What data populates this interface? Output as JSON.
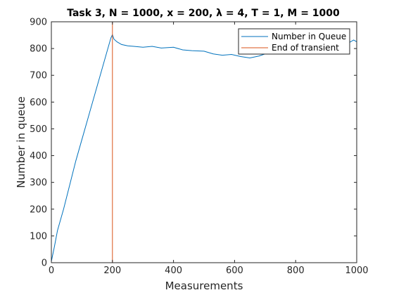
{
  "chart_data": {
    "type": "line",
    "title": "Task 3, N = 1000, x = 200, λ = 4, T = 1, M = 1000",
    "xlabel": "Measurements",
    "ylabel": "Number in queue",
    "xlim": [
      0,
      1000
    ],
    "ylim": [
      0,
      900
    ],
    "xticks": [
      "0",
      "200",
      "400",
      "600",
      "800",
      "1000"
    ],
    "yticks": [
      "0",
      "100",
      "200",
      "300",
      "400",
      "500",
      "600",
      "700",
      "800",
      "900"
    ],
    "grid": false,
    "legend_position": "top-right",
    "series": [
      {
        "name": "Number in Queue",
        "color": "#0072BD",
        "x": [
          0,
          10,
          20,
          40,
          60,
          80,
          100,
          120,
          140,
          160,
          180,
          195,
          200,
          205,
          215,
          230,
          250,
          270,
          300,
          330,
          360,
          400,
          430,
          460,
          500,
          530,
          560,
          590,
          620,
          650,
          680,
          700,
          720,
          750,
          780,
          800,
          830,
          860,
          900,
          930,
          960,
          990,
          1000
        ],
        "y": [
          5,
          60,
          120,
          200,
          290,
          380,
          460,
          540,
          620,
          700,
          780,
          840,
          852,
          835,
          825,
          815,
          810,
          808,
          805,
          808,
          802,
          805,
          795,
          792,
          790,
          780,
          775,
          778,
          770,
          765,
          772,
          780,
          785,
          790,
          790,
          795,
          800,
          806,
          805,
          810,
          812,
          832,
          825
        ]
      },
      {
        "name": "End of transient",
        "color": "#D95319",
        "x": [
          200,
          200
        ],
        "y": [
          0,
          900
        ]
      }
    ]
  }
}
